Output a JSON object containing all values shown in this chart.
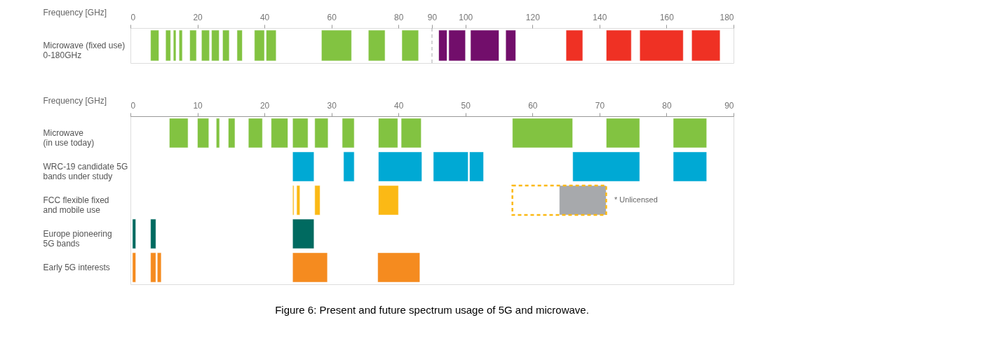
{
  "chart_data": [
    {
      "type": "bar",
      "orientation": "horizontal",
      "xlabel": "Frequency [GHz]",
      "xlim": [
        0,
        180
      ],
      "xticks": [
        0,
        20,
        40,
        60,
        80,
        90,
        100,
        120,
        140,
        160,
        180
      ],
      "categories": [
        "Microwave (fixed use)\n0-180GHz"
      ],
      "series": [
        {
          "color": "#82c341",
          "base": [
            6
          ],
          "values": [
            2.5
          ]
        },
        {
          "color": "#82c341",
          "base": [
            10.5
          ],
          "values": [
            1.5
          ]
        },
        {
          "color": "#82c341",
          "base": [
            12.8
          ],
          "values": [
            0.8
          ]
        },
        {
          "color": "#82c341",
          "base": [
            14.5
          ],
          "values": [
            1
          ]
        },
        {
          "color": "#82c341",
          "base": [
            17.7
          ],
          "values": [
            2
          ]
        },
        {
          "color": "#82c341",
          "base": [
            21.2
          ],
          "values": [
            2.4
          ]
        },
        {
          "color": "#82c341",
          "base": [
            24.2
          ],
          "values": [
            2.3
          ]
        },
        {
          "color": "#82c341",
          "base": [
            27.5
          ],
          "values": [
            2
          ]
        },
        {
          "color": "#82c341",
          "base": [
            31.8
          ],
          "values": [
            1.6
          ]
        },
        {
          "color": "#82c341",
          "base": [
            37
          ],
          "values": [
            3
          ]
        },
        {
          "color": "#82c341",
          "base": [
            40.5
          ],
          "values": [
            3
          ]
        },
        {
          "color": "#82c341",
          "base": [
            57
          ],
          "values": [
            9
          ]
        },
        {
          "color": "#82c341",
          "base": [
            71
          ],
          "values": [
            5
          ]
        },
        {
          "color": "#82c341",
          "base": [
            81
          ],
          "values": [
            5
          ]
        },
        {
          "color": "#720e6b",
          "base": [
            92
          ],
          "values": [
            2.5
          ]
        },
        {
          "color": "#720e6b",
          "base": [
            95
          ],
          "values": [
            5
          ]
        },
        {
          "color": "#720e6b",
          "base": [
            101.5
          ],
          "values": [
            8.5
          ]
        },
        {
          "color": "#720e6b",
          "base": [
            112
          ],
          "values": [
            3
          ]
        },
        {
          "color": "#ef3124",
          "base": [
            130
          ],
          "values": [
            5
          ]
        },
        {
          "color": "#ef3124",
          "base": [
            142
          ],
          "values": [
            7.5
          ]
        },
        {
          "color": "#ef3124",
          "base": [
            152
          ],
          "values": [
            13
          ]
        },
        {
          "color": "#ef3124",
          "base": [
            167.5
          ],
          "values": [
            8.5
          ]
        }
      ],
      "ref_lines": [
        {
          "axis": "x",
          "value": 90,
          "color": "#a7a9ac",
          "line_style": "dashed"
        }
      ]
    },
    {
      "type": "bar",
      "orientation": "horizontal",
      "xlabel": "Frequency [GHz]",
      "xlim": [
        0,
        90
      ],
      "xticks": [
        0,
        10,
        20,
        30,
        40,
        50,
        60,
        70,
        80,
        90
      ],
      "categories": [
        "Microwave\n(in use today)",
        "WRC-19 candidate 5G\nbands under study",
        "FCC flexible fixed\nand mobile use",
        "Europe pioneering\n5G bands",
        "Early 5G interests"
      ],
      "series": [
        {
          "colors": [
            "#82c341",
            "#00a9d4",
            "#fbb915",
            "#006a60",
            "#f58b1f"
          ],
          "base": [
            5.8,
            24.2,
            24.2,
            0.3,
            0.3
          ],
          "values": [
            2.8,
            3.2,
            0.2,
            0.5,
            0.5
          ]
        },
        {
          "colors": [
            "#82c341",
            "#00a9d4",
            "#fbb915",
            "#006a60",
            "#f58b1f"
          ],
          "base": [
            10,
            31.8,
            24.8,
            3,
            3
          ],
          "values": [
            1.7,
            1.6,
            0.5,
            0.8,
            0.8
          ]
        },
        {
          "colors": [
            "#82c341",
            "#00a9d4",
            "#fbb915",
            "#006a60",
            "#f58b1f"
          ],
          "base": [
            12.8,
            37,
            27.5,
            24.2,
            4
          ],
          "values": [
            0.5,
            6.5,
            0.8,
            3.2,
            0.6
          ]
        },
        {
          "colors": [
            "#82c341",
            "#00a9d4",
            "#fbb915",
            null,
            "#f58b1f"
          ],
          "base": [
            14.6,
            45.2,
            37,
            null,
            24.2
          ],
          "values": [
            1,
            5.2,
            3,
            null,
            5.2
          ]
        },
        {
          "colors": [
            "#82c341",
            "#00a9d4",
            "#a7a9ac",
            null,
            "#f58b1f"
          ],
          "base": [
            17.6,
            50.6,
            64,
            null,
            36.9
          ],
          "values": [
            2.1,
            2.1,
            7,
            null,
            6.3
          ]
        },
        {
          "colors": [
            "#82c341",
            "#00a9d4",
            null,
            null,
            null
          ],
          "base": [
            21,
            66,
            null,
            null,
            null
          ],
          "values": [
            2.5,
            10,
            null,
            null,
            null
          ]
        },
        {
          "colors": [
            "#82c341",
            "#00a9d4",
            null,
            null,
            null
          ],
          "base": [
            24.2,
            81,
            null,
            null,
            null
          ],
          "values": [
            2.3,
            5,
            null,
            null,
            null
          ]
        },
        {
          "colors": [
            "#82c341",
            null,
            null,
            null,
            null
          ],
          "base": [
            27.5,
            null,
            null,
            null,
            null
          ],
          "values": [
            2,
            null,
            null,
            null,
            null
          ]
        },
        {
          "colors": [
            "#82c341",
            null,
            null,
            null,
            null
          ],
          "base": [
            31.6,
            null,
            null,
            null,
            null
          ],
          "values": [
            1.8,
            null,
            null,
            null,
            null
          ]
        },
        {
          "colors": [
            "#82c341",
            null,
            null,
            null,
            null
          ],
          "base": [
            37,
            null,
            null,
            null,
            null
          ],
          "values": [
            2.9,
            null,
            null,
            null,
            null
          ]
        },
        {
          "colors": [
            "#82c341",
            null,
            null,
            null,
            null
          ],
          "base": [
            40.4,
            null,
            null,
            null,
            null
          ],
          "values": [
            3,
            null,
            null,
            null,
            null
          ]
        },
        {
          "colors": [
            "#82c341",
            null,
            null,
            null,
            null
          ],
          "base": [
            57,
            null,
            null,
            null,
            null
          ],
          "values": [
            9,
            null,
            null,
            null,
            null
          ]
        },
        {
          "colors": [
            "#82c341",
            null,
            null,
            null,
            null
          ],
          "base": [
            71,
            null,
            null,
            null,
            null
          ],
          "values": [
            5,
            null,
            null,
            null,
            null
          ]
        },
        {
          "colors": [
            "#82c341",
            null,
            null,
            null,
            null
          ],
          "base": [
            81,
            null,
            null,
            null,
            null
          ],
          "values": [
            5,
            null,
            null,
            null,
            null
          ]
        },
        {
          "color": "#fbb915",
          "line_style": "dashed",
          "base": [
            null,
            null,
            57,
            null,
            null
          ],
          "values": [
            null,
            null,
            14,
            null,
            null
          ]
        }
      ],
      "annotations": [
        "* Unlicensed",
        "Figure 6: Present and future spectrum usage of 5G and microwave."
      ]
    }
  ]
}
